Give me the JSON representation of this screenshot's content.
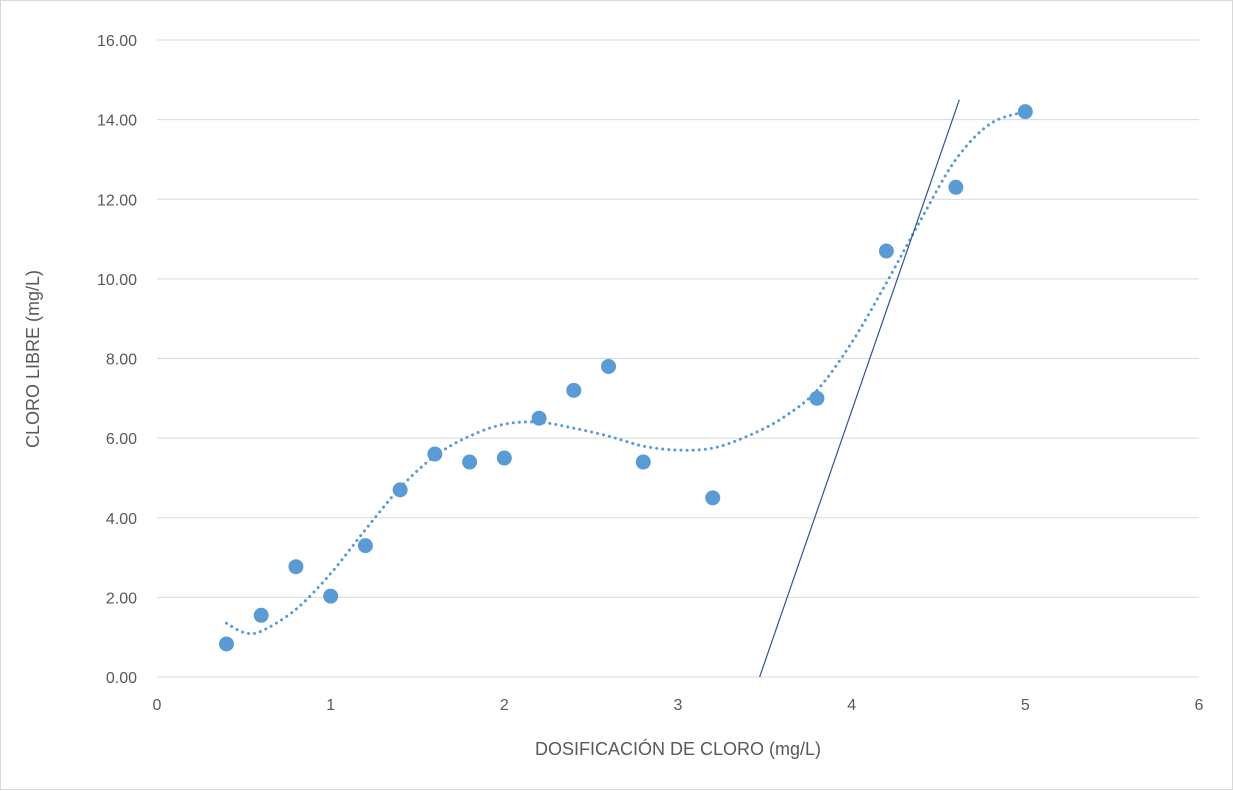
{
  "chart_data": {
    "type": "scatter",
    "title": "",
    "xlabel": "DOSIFICACIÓN DE CLORO (mg/L)",
    "ylabel": "CLORO LIBRE (mg/L)",
    "xlim": [
      0,
      6
    ],
    "ylim": [
      0,
      16
    ],
    "x_ticks": [
      "0",
      "1",
      "2",
      "3",
      "4",
      "5",
      "6"
    ],
    "y_ticks": [
      "0.00",
      "2.00",
      "4.00",
      "6.00",
      "8.00",
      "10.00",
      "12.00",
      "14.00",
      "16.00"
    ],
    "grid": "horizontal",
    "legend": "none",
    "series": [
      {
        "x": [
          0.4,
          0.6,
          0.8,
          1.0,
          1.2,
          1.4,
          1.6,
          1.8,
          2.0,
          2.2,
          2.4,
          2.6,
          2.8,
          3.2,
          3.8,
          4.2,
          4.6,
          5.0
        ],
        "y": [
          0.83,
          1.55,
          2.77,
          2.03,
          3.3,
          4.7,
          5.6,
          5.4,
          5.5,
          6.5,
          7.2,
          7.8,
          5.4,
          4.5,
          7.0,
          10.7,
          12.3,
          14.2
        ],
        "color": "#5b9bd5"
      }
    ],
    "trendline": {
      "style": "dotted",
      "color": "#5b9bd5",
      "x": [
        0.4,
        0.5,
        0.6,
        0.8,
        1.0,
        1.2,
        1.4,
        1.6,
        1.8,
        2.0,
        2.2,
        2.4,
        2.6,
        2.8,
        3.0,
        3.2,
        3.4,
        3.6,
        3.8,
        4.0,
        4.2,
        4.4,
        4.6,
        4.8,
        5.0
      ],
      "y": [
        1.35,
        1.12,
        1.15,
        1.7,
        2.6,
        3.7,
        4.75,
        5.55,
        6.05,
        6.35,
        6.4,
        6.25,
        6.05,
        5.8,
        5.7,
        5.75,
        6.05,
        6.5,
        7.2,
        8.4,
        9.9,
        11.5,
        13.0,
        13.9,
        14.2
      ]
    },
    "reference_line": {
      "color": "#2f5597",
      "x": [
        3.47,
        4.62
      ],
      "y": [
        0,
        14.5
      ]
    }
  }
}
